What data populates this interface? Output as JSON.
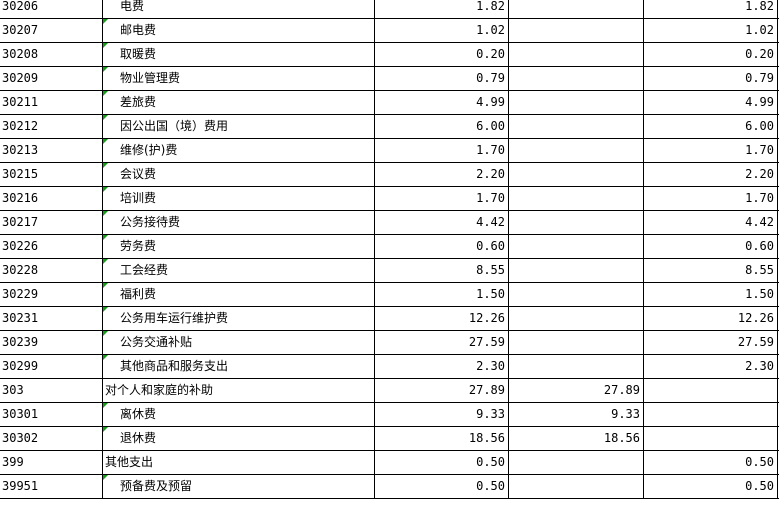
{
  "rows": [
    {
      "code": "30206",
      "name": "电费",
      "total": "1.82",
      "basic": "",
      "project": "1.82",
      "sub": true
    },
    {
      "code": "30207",
      "name": "邮电费",
      "total": "1.02",
      "basic": "",
      "project": "1.02",
      "sub": true
    },
    {
      "code": "30208",
      "name": "取暖费",
      "total": "0.20",
      "basic": "",
      "project": "0.20",
      "sub": true
    },
    {
      "code": "30209",
      "name": "物业管理费",
      "total": "0.79",
      "basic": "",
      "project": "0.79",
      "sub": true
    },
    {
      "code": "30211",
      "name": "差旅费",
      "total": "4.99",
      "basic": "",
      "project": "4.99",
      "sub": true
    },
    {
      "code": "30212",
      "name": "因公出国（境）费用",
      "total": "6.00",
      "basic": "",
      "project": "6.00",
      "sub": true
    },
    {
      "code": "30213",
      "name": "维修(护)费",
      "total": "1.70",
      "basic": "",
      "project": "1.70",
      "sub": true
    },
    {
      "code": "30215",
      "name": "会议费",
      "total": "2.20",
      "basic": "",
      "project": "2.20",
      "sub": true
    },
    {
      "code": "30216",
      "name": "培训费",
      "total": "1.70",
      "basic": "",
      "project": "1.70",
      "sub": true
    },
    {
      "code": "30217",
      "name": "公务接待费",
      "total": "4.42",
      "basic": "",
      "project": "4.42",
      "sub": true
    },
    {
      "code": "30226",
      "name": "劳务费",
      "total": "0.60",
      "basic": "",
      "project": "0.60",
      "sub": true
    },
    {
      "code": "30228",
      "name": "工会经费",
      "total": "8.55",
      "basic": "",
      "project": "8.55",
      "sub": true
    },
    {
      "code": "30229",
      "name": "福利费",
      "total": "1.50",
      "basic": "",
      "project": "1.50",
      "sub": true
    },
    {
      "code": "30231",
      "name": "公务用车运行维护费",
      "total": "12.26",
      "basic": "",
      "project": "12.26",
      "sub": true
    },
    {
      "code": "30239",
      "name": "公务交通补贴",
      "total": "27.59",
      "basic": "",
      "project": "27.59",
      "sub": true
    },
    {
      "code": "30299",
      "name": "其他商品和服务支出",
      "total": "2.30",
      "basic": "",
      "project": "2.30",
      "sub": true
    },
    {
      "code": "303",
      "name": "对个人和家庭的补助",
      "total": "27.89",
      "basic": "27.89",
      "project": "",
      "sub": false
    },
    {
      "code": "30301",
      "name": "离休费",
      "total": "9.33",
      "basic": "9.33",
      "project": "",
      "sub": true
    },
    {
      "code": "30302",
      "name": "退休费",
      "total": "18.56",
      "basic": "18.56",
      "project": "",
      "sub": true
    },
    {
      "code": "399",
      "name": "其他支出",
      "total": "0.50",
      "basic": "",
      "project": "0.50",
      "sub": false
    },
    {
      "code": "39951",
      "name": "预备费及预留",
      "total": "0.50",
      "basic": "",
      "project": "0.50",
      "sub": true
    }
  ],
  "colors": {
    "comment_marker": "#1a9a1a"
  }
}
